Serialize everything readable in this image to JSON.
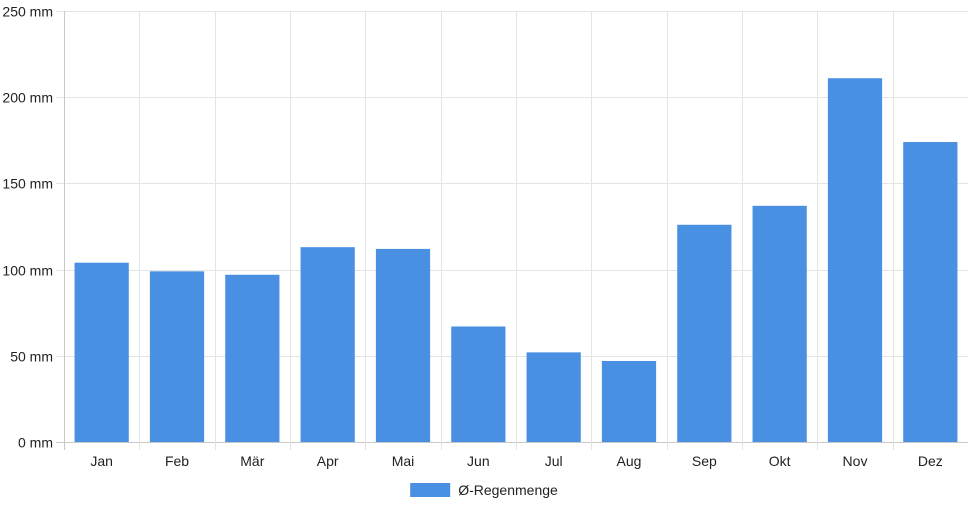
{
  "chart_data": {
    "type": "bar",
    "categories": [
      "Jan",
      "Feb",
      "Mär",
      "Apr",
      "Mai",
      "Jun",
      "Jul",
      "Aug",
      "Sep",
      "Okt",
      "Nov",
      "Dez"
    ],
    "series": [
      {
        "name": "Ø-Regenmenge",
        "values": [
          104,
          99,
          97,
          113,
          112,
          67,
          52,
          47,
          126,
          137,
          211,
          174
        ],
        "color": "#4a90e2"
      }
    ],
    "ylim": [
      0,
      250
    ],
    "yticks": [
      0,
      50,
      100,
      150,
      200,
      250
    ],
    "y_unit": "mm",
    "grid": true,
    "legend_position": "bottom-center"
  }
}
